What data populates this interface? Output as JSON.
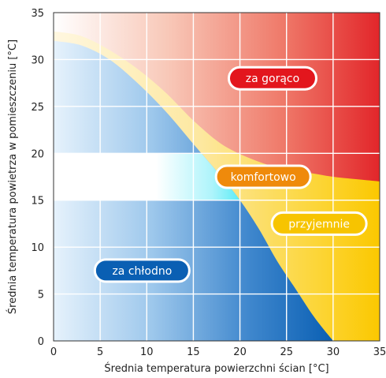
{
  "chart_data": {
    "type": "area",
    "title": "",
    "xlabel": "Średnia temperatura powierzchni ścian [°C]",
    "ylabel": "Średnia temperatura powietrza w pomieszczeniu [°C]",
    "xlim": [
      0,
      35
    ],
    "ylim": [
      0,
      35
    ],
    "x_ticks": [
      0,
      5,
      10,
      15,
      20,
      25,
      30,
      35
    ],
    "y_ticks": [
      0,
      5,
      10,
      15,
      20,
      25,
      30,
      35
    ],
    "grid": true,
    "boundaries": {
      "cold_upper": {
        "x": [
          0,
          3,
          6,
          9,
          12,
          15,
          18,
          20,
          22,
          24,
          26,
          28,
          30
        ],
        "y": [
          32,
          31.5,
          30,
          27.5,
          24.5,
          21,
          17.5,
          15,
          12,
          8.5,
          5.5,
          2.5,
          0
        ]
      },
      "hot_lower": {
        "x": [
          0,
          3,
          6,
          9,
          12,
          15,
          18,
          21,
          24,
          27,
          30,
          33,
          35
        ],
        "y": [
          33,
          32.5,
          31,
          29,
          26.5,
          23.5,
          21,
          19.5,
          18.5,
          18,
          17.5,
          17.2,
          17
        ]
      }
    },
    "comfort_band": {
      "x": [
        0,
        20
      ],
      "y": [
        15,
        20
      ]
    },
    "regions": [
      {
        "label": "za gorąco",
        "x": 23.5,
        "y": 28,
        "color": "#e3161d"
      },
      {
        "label": "komfortowo",
        "x": 22.5,
        "y": 17.5,
        "color": "#ef8a0b"
      },
      {
        "label": "przyjemnie",
        "x": 28.5,
        "y": 12.5,
        "color": "#f7c400"
      },
      {
        "label": "za chłodno",
        "x": 9.5,
        "y": 7.5,
        "color": "#0a5fb3"
      }
    ]
  }
}
